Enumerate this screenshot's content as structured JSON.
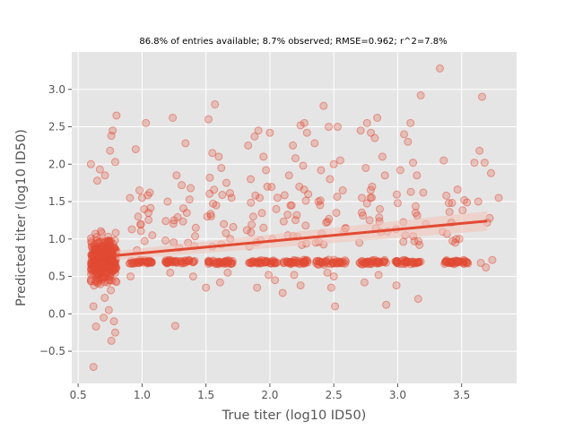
{
  "chart_data": {
    "type": "scatter",
    "title": "86.8% of entries available; 8.7% observed; RMSE=0.962; r^2=7.8%",
    "xlabel": "True titer (log10 ID50)",
    "ylabel": "Predicted titer (log10 ID50)",
    "xlim": [
      0.45,
      3.93
    ],
    "ylim": [
      -0.93,
      3.5
    ],
    "x_ticks": [
      0.5,
      1.0,
      1.5,
      2.0,
      2.5,
      3.0,
      3.5
    ],
    "x_tick_labels": [
      "0.5",
      "1.0",
      "1.5",
      "2.0",
      "2.5",
      "3.0",
      "3.5"
    ],
    "y_ticks": [
      -0.5,
      0.0,
      0.5,
      1.0,
      1.5,
      2.0,
      2.5,
      3.0
    ],
    "y_tick_labels": [
      "−0.5",
      "0.0",
      "0.5",
      "1.0",
      "1.5",
      "2.0",
      "2.5",
      "3.0"
    ],
    "grid": true,
    "colors": {
      "background": "#e5e5e5",
      "grid": "#ffffff",
      "points": "#e24a33",
      "fit_band": "#f2c4bb"
    },
    "regression": {
      "x": [
        0.8,
        3.7
      ],
      "y": [
        0.78,
        1.24
      ]
    },
    "points": [
      {
        "x": 0.62,
        "y": -0.71
      },
      {
        "x": 0.64,
        "y": -0.17
      },
      {
        "x": 0.76,
        "y": -0.36
      },
      {
        "x": 0.79,
        "y": -0.25
      },
      {
        "x": 1.26,
        "y": -0.16
      },
      {
        "x": 0.7,
        "y": -0.05
      },
      {
        "x": 0.78,
        "y": -0.1
      },
      {
        "x": 0.62,
        "y": 0.1
      },
      {
        "x": 0.74,
        "y": 0.05
      },
      {
        "x": 0.6,
        "y": 2.0
      },
      {
        "x": 0.67,
        "y": 1.93
      },
      {
        "x": 0.77,
        "y": 2.45
      },
      {
        "x": 0.76,
        "y": 2.38
      },
      {
        "x": 0.8,
        "y": 2.65
      },
      {
        "x": 0.75,
        "y": 2.18
      },
      {
        "x": 0.79,
        "y": 2.03
      },
      {
        "x": 0.71,
        "y": 1.85
      },
      {
        "x": 0.65,
        "y": 1.78
      },
      {
        "x": 0.95,
        "y": 2.2
      },
      {
        "x": 0.98,
        "y": 1.65
      },
      {
        "x": 1.03,
        "y": 2.55
      },
      {
        "x": 1.0,
        "y": 1.55
      },
      {
        "x": 0.97,
        "y": 1.3
      },
      {
        "x": 0.92,
        "y": 1.13
      },
      {
        "x": 1.05,
        "y": 1.35
      },
      {
        "x": 1.08,
        "y": 1.05
      },
      {
        "x": 0.96,
        "y": 0.85
      },
      {
        "x": 0.91,
        "y": 0.5
      },
      {
        "x": 1.24,
        "y": 2.62
      },
      {
        "x": 1.34,
        "y": 2.28
      },
      {
        "x": 1.27,
        "y": 1.85
      },
      {
        "x": 1.31,
        "y": 1.72
      },
      {
        "x": 1.38,
        "y": 1.68
      },
      {
        "x": 1.2,
        "y": 1.5
      },
      {
        "x": 1.35,
        "y": 1.35
      },
      {
        "x": 1.25,
        "y": 1.25
      },
      {
        "x": 1.42,
        "y": 1.15
      },
      {
        "x": 1.29,
        "y": 0.88
      },
      {
        "x": 1.36,
        "y": 0.95
      },
      {
        "x": 1.22,
        "y": 0.55
      },
      {
        "x": 1.4,
        "y": 0.5
      },
      {
        "x": 1.57,
        "y": 2.8
      },
      {
        "x": 1.52,
        "y": 2.6
      },
      {
        "x": 1.55,
        "y": 2.15
      },
      {
        "x": 1.6,
        "y": 2.1
      },
      {
        "x": 1.62,
        "y": 1.95
      },
      {
        "x": 1.53,
        "y": 1.82
      },
      {
        "x": 1.66,
        "y": 1.75
      },
      {
        "x": 1.7,
        "y": 1.55
      },
      {
        "x": 1.58,
        "y": 1.45
      },
      {
        "x": 1.51,
        "y": 1.3
      },
      {
        "x": 1.64,
        "y": 1.2
      },
      {
        "x": 1.69,
        "y": 1.0
      },
      {
        "x": 1.55,
        "y": 0.9
      },
      {
        "x": 1.61,
        "y": 0.42
      },
      {
        "x": 1.5,
        "y": 0.35
      },
      {
        "x": 1.67,
        "y": 0.55
      },
      {
        "x": 1.83,
        "y": 2.25
      },
      {
        "x": 1.91,
        "y": 2.45
      },
      {
        "x": 1.88,
        "y": 2.37
      },
      {
        "x": 2.0,
        "y": 2.42
      },
      {
        "x": 1.95,
        "y": 2.1
      },
      {
        "x": 1.97,
        "y": 1.92
      },
      {
        "x": 1.85,
        "y": 1.8
      },
      {
        "x": 1.98,
        "y": 1.7
      },
      {
        "x": 1.92,
        "y": 1.55
      },
      {
        "x": 2.05,
        "y": 1.4
      },
      {
        "x": 1.87,
        "y": 1.3
      },
      {
        "x": 1.95,
        "y": 1.15
      },
      {
        "x": 2.02,
        "y": 1.0
      },
      {
        "x": 1.84,
        "y": 0.9
      },
      {
        "x": 1.99,
        "y": 0.52
      },
      {
        "x": 2.04,
        "y": 0.45
      },
      {
        "x": 1.9,
        "y": 0.35
      },
      {
        "x": 2.18,
        "y": 2.25
      },
      {
        "x": 2.24,
        "y": 2.52
      },
      {
        "x": 2.27,
        "y": 2.55
      },
      {
        "x": 2.29,
        "y": 2.42
      },
      {
        "x": 2.2,
        "y": 2.08
      },
      {
        "x": 2.26,
        "y": 1.98
      },
      {
        "x": 2.15,
        "y": 1.85
      },
      {
        "x": 2.23,
        "y": 1.7
      },
      {
        "x": 2.3,
        "y": 1.6
      },
      {
        "x": 2.17,
        "y": 1.45
      },
      {
        "x": 2.21,
        "y": 1.32
      },
      {
        "x": 2.28,
        "y": 1.18
      },
      {
        "x": 2.14,
        "y": 1.05
      },
      {
        "x": 2.25,
        "y": 0.92
      },
      {
        "x": 2.19,
        "y": 0.52
      },
      {
        "x": 2.24,
        "y": 0.38
      },
      {
        "x": 2.1,
        "y": 0.28
      },
      {
        "x": 2.42,
        "y": 2.78
      },
      {
        "x": 2.46,
        "y": 2.5
      },
      {
        "x": 2.53,
        "y": 2.5
      },
      {
        "x": 2.35,
        "y": 2.28
      },
      {
        "x": 2.5,
        "y": 2.0
      },
      {
        "x": 2.55,
        "y": 2.05
      },
      {
        "x": 2.4,
        "y": 1.92
      },
      {
        "x": 2.47,
        "y": 1.8
      },
      {
        "x": 2.57,
        "y": 1.65
      },
      {
        "x": 2.38,
        "y": 1.5
      },
      {
        "x": 2.52,
        "y": 1.35
      },
      {
        "x": 2.44,
        "y": 1.22
      },
      {
        "x": 2.58,
        "y": 1.1
      },
      {
        "x": 2.36,
        "y": 0.95
      },
      {
        "x": 2.5,
        "y": 0.5
      },
      {
        "x": 2.48,
        "y": 0.35
      },
      {
        "x": 2.51,
        "y": 0.1
      },
      {
        "x": 2.45,
        "y": 0.55
      },
      {
        "x": 2.76,
        "y": 2.55
      },
      {
        "x": 2.84,
        "y": 2.62
      },
      {
        "x": 2.79,
        "y": 2.42
      },
      {
        "x": 2.82,
        "y": 2.35
      },
      {
        "x": 2.71,
        "y": 2.45
      },
      {
        "x": 2.88,
        "y": 2.1
      },
      {
        "x": 2.75,
        "y": 1.95
      },
      {
        "x": 2.9,
        "y": 1.85
      },
      {
        "x": 2.8,
        "y": 1.7
      },
      {
        "x": 2.72,
        "y": 1.55
      },
      {
        "x": 2.86,
        "y": 1.4
      },
      {
        "x": 2.78,
        "y": 1.25
      },
      {
        "x": 2.92,
        "y": 1.1
      },
      {
        "x": 2.7,
        "y": 0.95
      },
      {
        "x": 2.85,
        "y": 0.52
      },
      {
        "x": 2.91,
        "y": 0.12
      },
      {
        "x": 2.74,
        "y": 0.42
      },
      {
        "x": 3.05,
        "y": 2.4
      },
      {
        "x": 3.08,
        "y": 2.3
      },
      {
        "x": 3.1,
        "y": 2.55
      },
      {
        "x": 3.12,
        "y": 2.02
      },
      {
        "x": 3.15,
        "y": 1.85
      },
      {
        "x": 3.18,
        "y": 2.92
      },
      {
        "x": 3.02,
        "y": 1.92
      },
      {
        "x": 3.2,
        "y": 1.62
      },
      {
        "x": 3.0,
        "y": 1.48
      },
      {
        "x": 3.14,
        "y": 1.35
      },
      {
        "x": 3.22,
        "y": 1.2
      },
      {
        "x": 3.06,
        "y": 1.05
      },
      {
        "x": 3.17,
        "y": 0.92
      },
      {
        "x": 2.99,
        "y": 0.38
      },
      {
        "x": 3.16,
        "y": 0.2
      },
      {
        "x": 3.33,
        "y": 3.28
      },
      {
        "x": 3.36,
        "y": 2.05
      },
      {
        "x": 3.38,
        "y": 1.58
      },
      {
        "x": 3.4,
        "y": 1.48
      },
      {
        "x": 3.52,
        "y": 1.52
      },
      {
        "x": 3.42,
        "y": 1.22
      },
      {
        "x": 3.35,
        "y": 1.1
      },
      {
        "x": 3.45,
        "y": 0.95
      },
      {
        "x": 3.66,
        "y": 2.9
      },
      {
        "x": 3.64,
        "y": 2.18
      },
      {
        "x": 3.6,
        "y": 2.02
      },
      {
        "x": 3.68,
        "y": 2.02
      },
      {
        "x": 3.73,
        "y": 1.88
      },
      {
        "x": 3.63,
        "y": 1.5
      },
      {
        "x": 3.79,
        "y": 1.55
      },
      {
        "x": 3.72,
        "y": 1.28
      },
      {
        "x": 3.7,
        "y": 1.22
      },
      {
        "x": 3.74,
        "y": 0.72
      },
      {
        "x": 3.65,
        "y": 0.68
      },
      {
        "x": 3.69,
        "y": 0.62
      }
    ]
  }
}
